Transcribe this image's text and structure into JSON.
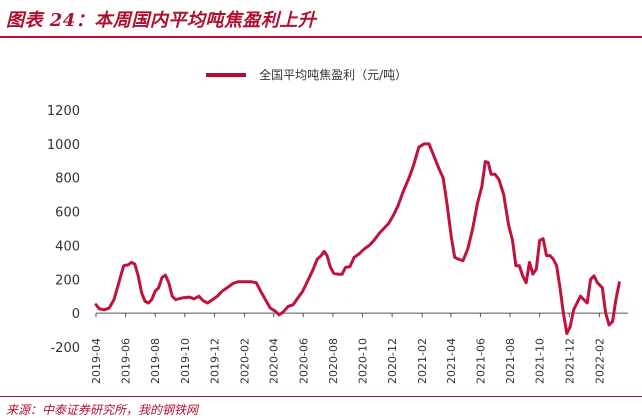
{
  "header": {
    "title": "图表 24：本周国内平均吨焦盈利上升"
  },
  "footer": {
    "source": "来源：中泰证券研究所，我的钢铁网"
  },
  "colors": {
    "accent": "#b0102e",
    "line": "#c0123c",
    "axis": "#555555",
    "text": "#333333"
  },
  "chart_data": {
    "type": "line",
    "title": "图表 24：本周国内平均吨焦盈利上升",
    "xlabel": "",
    "ylabel": "",
    "ylim": [
      -200,
      1200
    ],
    "yticks": [
      -200,
      0,
      200,
      400,
      600,
      800,
      1000,
      1200
    ],
    "xlim": [
      "2019-04",
      "2022-04"
    ],
    "xticks": [
      "2019-04",
      "2019-06",
      "2019-08",
      "2019-10",
      "2019-12",
      "2020-02",
      "2020-04",
      "2020-06",
      "2020-08",
      "2020-10",
      "2020-12",
      "2021-02",
      "2021-04",
      "2021-06",
      "2021-08",
      "2021-10",
      "2021-12",
      "2022-02"
    ],
    "grid": false,
    "legend": "top-center",
    "series": [
      {
        "name": "全国平均吨焦盈利（元/吨）",
        "points": [
          [
            "2019-04-01",
            50
          ],
          [
            "2019-04-08",
            25
          ],
          [
            "2019-04-18",
            20
          ],
          [
            "2019-04-28",
            30
          ],
          [
            "2019-05-08",
            80
          ],
          [
            "2019-05-18",
            180
          ],
          [
            "2019-05-28",
            280
          ],
          [
            "2019-06-06",
            285
          ],
          [
            "2019-06-13",
            300
          ],
          [
            "2019-06-20",
            290
          ],
          [
            "2019-06-27",
            220
          ],
          [
            "2019-07-04",
            120
          ],
          [
            "2019-07-11",
            70
          ],
          [
            "2019-07-18",
            60
          ],
          [
            "2019-07-25",
            80
          ],
          [
            "2019-08-01",
            130
          ],
          [
            "2019-08-08",
            150
          ],
          [
            "2019-08-15",
            210
          ],
          [
            "2019-08-22",
            225
          ],
          [
            "2019-08-29",
            180
          ],
          [
            "2019-09-05",
            100
          ],
          [
            "2019-09-12",
            80
          ],
          [
            "2019-09-26",
            90
          ],
          [
            "2019-10-10",
            95
          ],
          [
            "2019-10-20",
            85
          ],
          [
            "2019-10-30",
            100
          ],
          [
            "2019-11-07",
            75
          ],
          [
            "2019-11-17",
            60
          ],
          [
            "2019-11-27",
            80
          ],
          [
            "2019-12-07",
            100
          ],
          [
            "2019-12-17",
            130
          ],
          [
            "2019-12-27",
            150
          ],
          [
            "2020-01-08",
            175
          ],
          [
            "2020-01-18",
            185
          ],
          [
            "2020-02-01",
            185
          ],
          [
            "2020-02-15",
            185
          ],
          [
            "2020-02-25",
            180
          ],
          [
            "2020-03-05",
            130
          ],
          [
            "2020-03-15",
            80
          ],
          [
            "2020-03-25",
            30
          ],
          [
            "2020-04-05",
            10
          ],
          [
            "2020-04-12",
            -10
          ],
          [
            "2020-04-20",
            5
          ],
          [
            "2020-05-01",
            40
          ],
          [
            "2020-05-11",
            50
          ],
          [
            "2020-05-21",
            90
          ],
          [
            "2020-05-31",
            130
          ],
          [
            "2020-06-10",
            190
          ],
          [
            "2020-06-20",
            250
          ],
          [
            "2020-06-30",
            320
          ],
          [
            "2020-07-08",
            340
          ],
          [
            "2020-07-14",
            365
          ],
          [
            "2020-07-20",
            340
          ],
          [
            "2020-07-27",
            270
          ],
          [
            "2020-08-03",
            235
          ],
          [
            "2020-08-12",
            230
          ],
          [
            "2020-08-20",
            230
          ],
          [
            "2020-08-27",
            270
          ],
          [
            "2020-09-05",
            275
          ],
          [
            "2020-09-14",
            330
          ],
          [
            "2020-09-24",
            350
          ],
          [
            "2020-10-05",
            380
          ],
          [
            "2020-10-15",
            400
          ],
          [
            "2020-10-25",
            430
          ],
          [
            "2020-11-04",
            470
          ],
          [
            "2020-11-14",
            500
          ],
          [
            "2020-11-24",
            530
          ],
          [
            "2020-12-04",
            580
          ],
          [
            "2020-12-14",
            640
          ],
          [
            "2020-12-24",
            720
          ],
          [
            "2021-01-05",
            800
          ],
          [
            "2021-01-15",
            880
          ],
          [
            "2021-01-25",
            980
          ],
          [
            "2021-02-05",
            1000
          ],
          [
            "2021-02-15",
            1000
          ],
          [
            "2021-02-25",
            930
          ],
          [
            "2021-03-08",
            850
          ],
          [
            "2021-03-16",
            800
          ],
          [
            "2021-03-24",
            650
          ],
          [
            "2021-04-02",
            450
          ],
          [
            "2021-04-09",
            330
          ],
          [
            "2021-04-16",
            320
          ],
          [
            "2021-04-26",
            310
          ],
          [
            "2021-05-06",
            380
          ],
          [
            "2021-05-16",
            500
          ],
          [
            "2021-05-26",
            650
          ],
          [
            "2021-06-04",
            750
          ],
          [
            "2021-06-11",
            895
          ],
          [
            "2021-06-17",
            890
          ],
          [
            "2021-06-23",
            820
          ],
          [
            "2021-07-01",
            820
          ],
          [
            "2021-07-09",
            790
          ],
          [
            "2021-07-19",
            700
          ],
          [
            "2021-07-29",
            520
          ],
          [
            "2021-08-06",
            430
          ],
          [
            "2021-08-13",
            280
          ],
          [
            "2021-08-20",
            280
          ],
          [
            "2021-08-27",
            220
          ],
          [
            "2021-09-03",
            180
          ],
          [
            "2021-09-10",
            300
          ],
          [
            "2021-09-17",
            230
          ],
          [
            "2021-09-24",
            260
          ],
          [
            "2021-10-01",
            430
          ],
          [
            "2021-10-08",
            440
          ],
          [
            "2021-10-15",
            340
          ],
          [
            "2021-10-22",
            340
          ],
          [
            "2021-10-29",
            320
          ],
          [
            "2021-11-05",
            280
          ],
          [
            "2021-11-12",
            150
          ],
          [
            "2021-11-19",
            0
          ],
          [
            "2021-11-26",
            -120
          ],
          [
            "2021-12-03",
            -80
          ],
          [
            "2021-12-10",
            20
          ],
          [
            "2021-12-17",
            60
          ],
          [
            "2021-12-24",
            100
          ],
          [
            "2021-12-31",
            80
          ],
          [
            "2022-01-07",
            60
          ],
          [
            "2022-01-14",
            200
          ],
          [
            "2022-01-21",
            220
          ],
          [
            "2022-01-28",
            180
          ],
          [
            "2022-02-07",
            150
          ],
          [
            "2022-02-14",
            0
          ],
          [
            "2022-02-21",
            -70
          ],
          [
            "2022-02-28",
            -50
          ],
          [
            "2022-03-07",
            80
          ],
          [
            "2022-03-14",
            180
          ]
        ]
      }
    ]
  }
}
